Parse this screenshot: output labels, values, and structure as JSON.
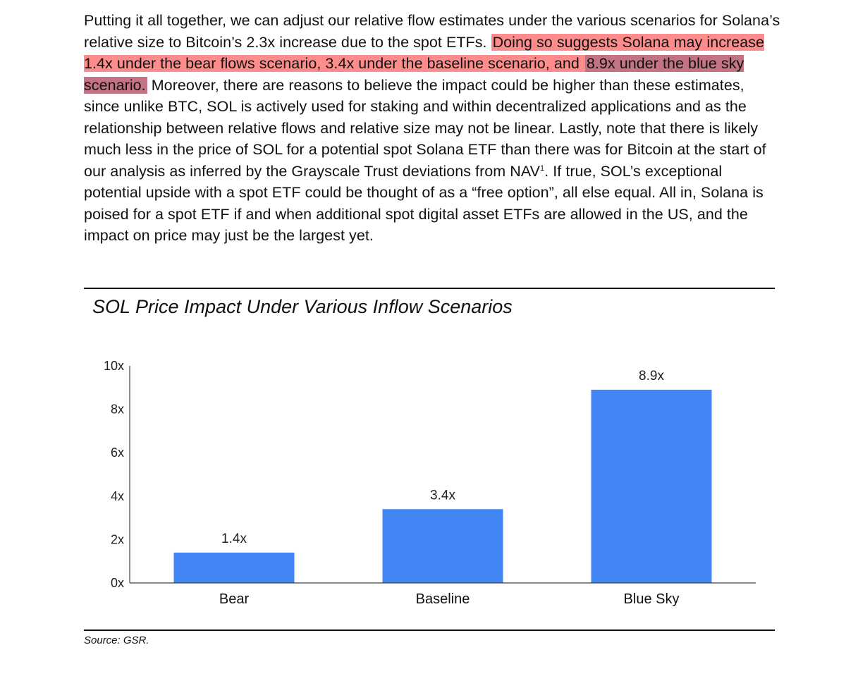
{
  "paragraph": {
    "part1": "Putting it all together, we can adjust our relative flow estimates under the various scenarios for Solana’s relative size to Bitcoin’s 2.3x increase due to the spot ETFs.  ",
    "highlight1": "Doing so suggests Solana may increase 1.4x under the bear flows scenario, 3.4x under the baseline scenario, and ",
    "highlight2": "8.9x under the blue sky scenario.",
    "part2": "  Moreover, there are reasons to believe the impact could be higher than these estimates, since unlike BTC, SOL is actively used for staking and within decentralized applications and as the relationship between relative flows and relative size may not be linear.  Lastly, note that there is likely much less in the price of SOL for a potential spot Solana ETF than there was for Bitcoin at the start of our analysis as inferred by the Grayscale Trust deviations from NAV",
    "footnote": "1",
    "part3": ".  If true, SOL’s exceptional potential upside with a spot ETF could be thought of as a “free option”, all else equal.  All in, Solana is poised for a spot ETF if and when additional spot digital asset ETFs are allowed in the US, and the impact on price may just be the largest yet."
  },
  "source": "Source: GSR.",
  "colors": {
    "bar": "#4285f4",
    "highlight": "#ff7878"
  },
  "chart_data": {
    "type": "bar",
    "title": "SOL Price Impact Under Various Inflow Scenarios",
    "categories": [
      "Bear",
      "Baseline",
      "Blue Sky"
    ],
    "values": [
      1.4,
      3.4,
      8.9
    ],
    "data_labels": [
      "1.4x",
      "3.4x",
      "8.9x"
    ],
    "y_ticks": [
      0,
      2,
      4,
      6,
      8,
      10
    ],
    "y_tick_labels": [
      "0x",
      "2x",
      "4x",
      "6x",
      "8x",
      "10x"
    ],
    "ylim": [
      0,
      10
    ],
    "xlabel": "",
    "ylabel": "",
    "grid": false,
    "legend": "none"
  }
}
